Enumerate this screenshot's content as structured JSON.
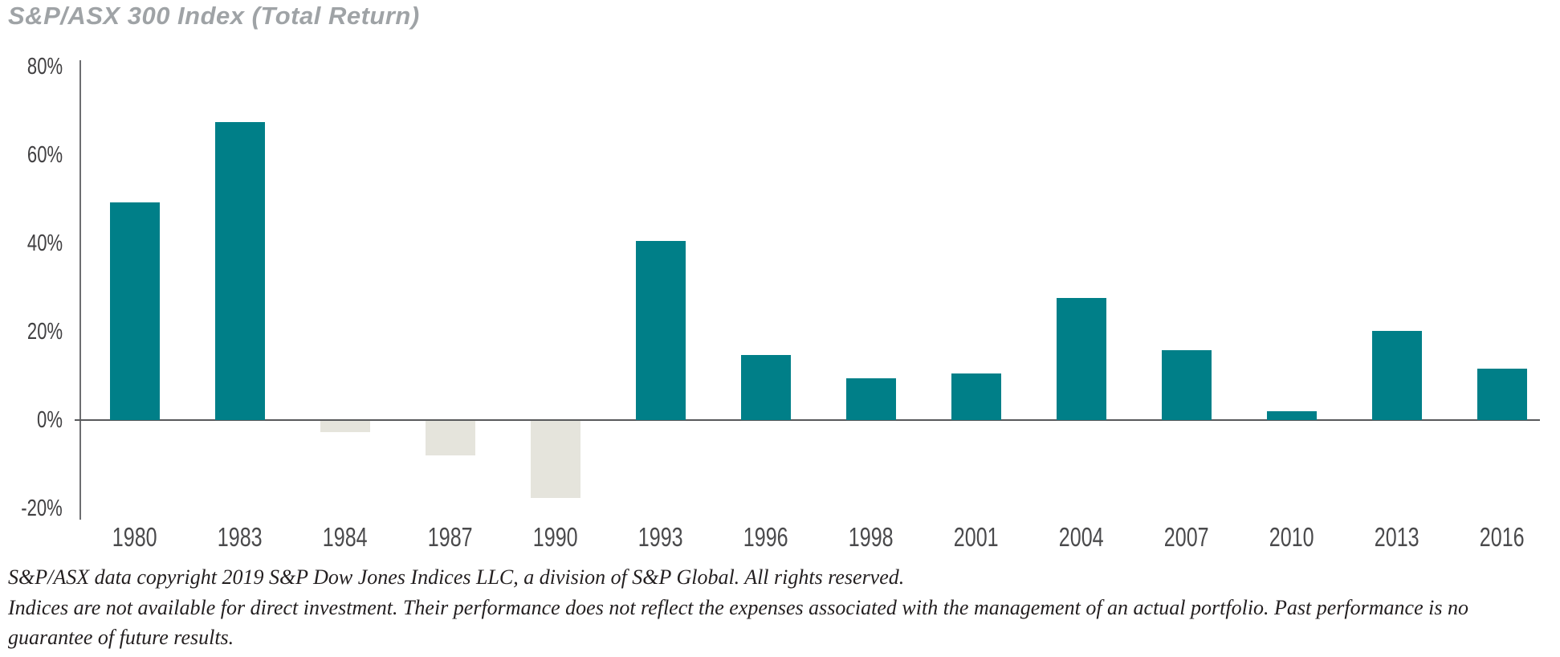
{
  "title": "S&P/ASX 300 Index (Total Return)",
  "footer": {
    "line1": "S&P/ASX data copyright 2019 S&P Dow Jones Indices LLC, a division of S&P Global. All rights reserved.",
    "line2": "Indices are not available for direct investment. Their performance does not reflect the expenses associated with the management of an actual portfolio. Past performance is no guarantee of future results."
  },
  "colors": {
    "positive_bar": "#007f88",
    "negative_bar": "#e5e4dc",
    "axis_vertical": "#6d6e71",
    "axis_zero_line": "#58595b",
    "title_text": "#9fa3a6",
    "tick_text": "#414042",
    "footer_text": "#231f20"
  },
  "chart_data": {
    "type": "bar",
    "title": "S&P/ASX 300 Index (Total Return)",
    "categories": [
      "1980",
      "1983",
      "1984",
      "1987",
      "1990",
      "1993",
      "1996",
      "1998",
      "2001",
      "2004",
      "2007",
      "2010",
      "2013",
      "2016"
    ],
    "values": [
      49.3,
      67.5,
      -2.5,
      -7.9,
      -17.5,
      40.5,
      14.7,
      9.5,
      10.5,
      27.7,
      15.8,
      2.0,
      20.2,
      11.6
    ],
    "xlabel": "",
    "ylabel": "",
    "ylim": [
      -20,
      80
    ],
    "yticks": [
      80,
      60,
      40,
      20,
      0,
      -20
    ],
    "ytick_labels": [
      "80%",
      "60%",
      "40%",
      "20%",
      "0%",
      "-20%"
    ],
    "grid": false,
    "legend": false,
    "bar_color_positive": "#007f88",
    "bar_color_negative": "#e5e4dc"
  }
}
